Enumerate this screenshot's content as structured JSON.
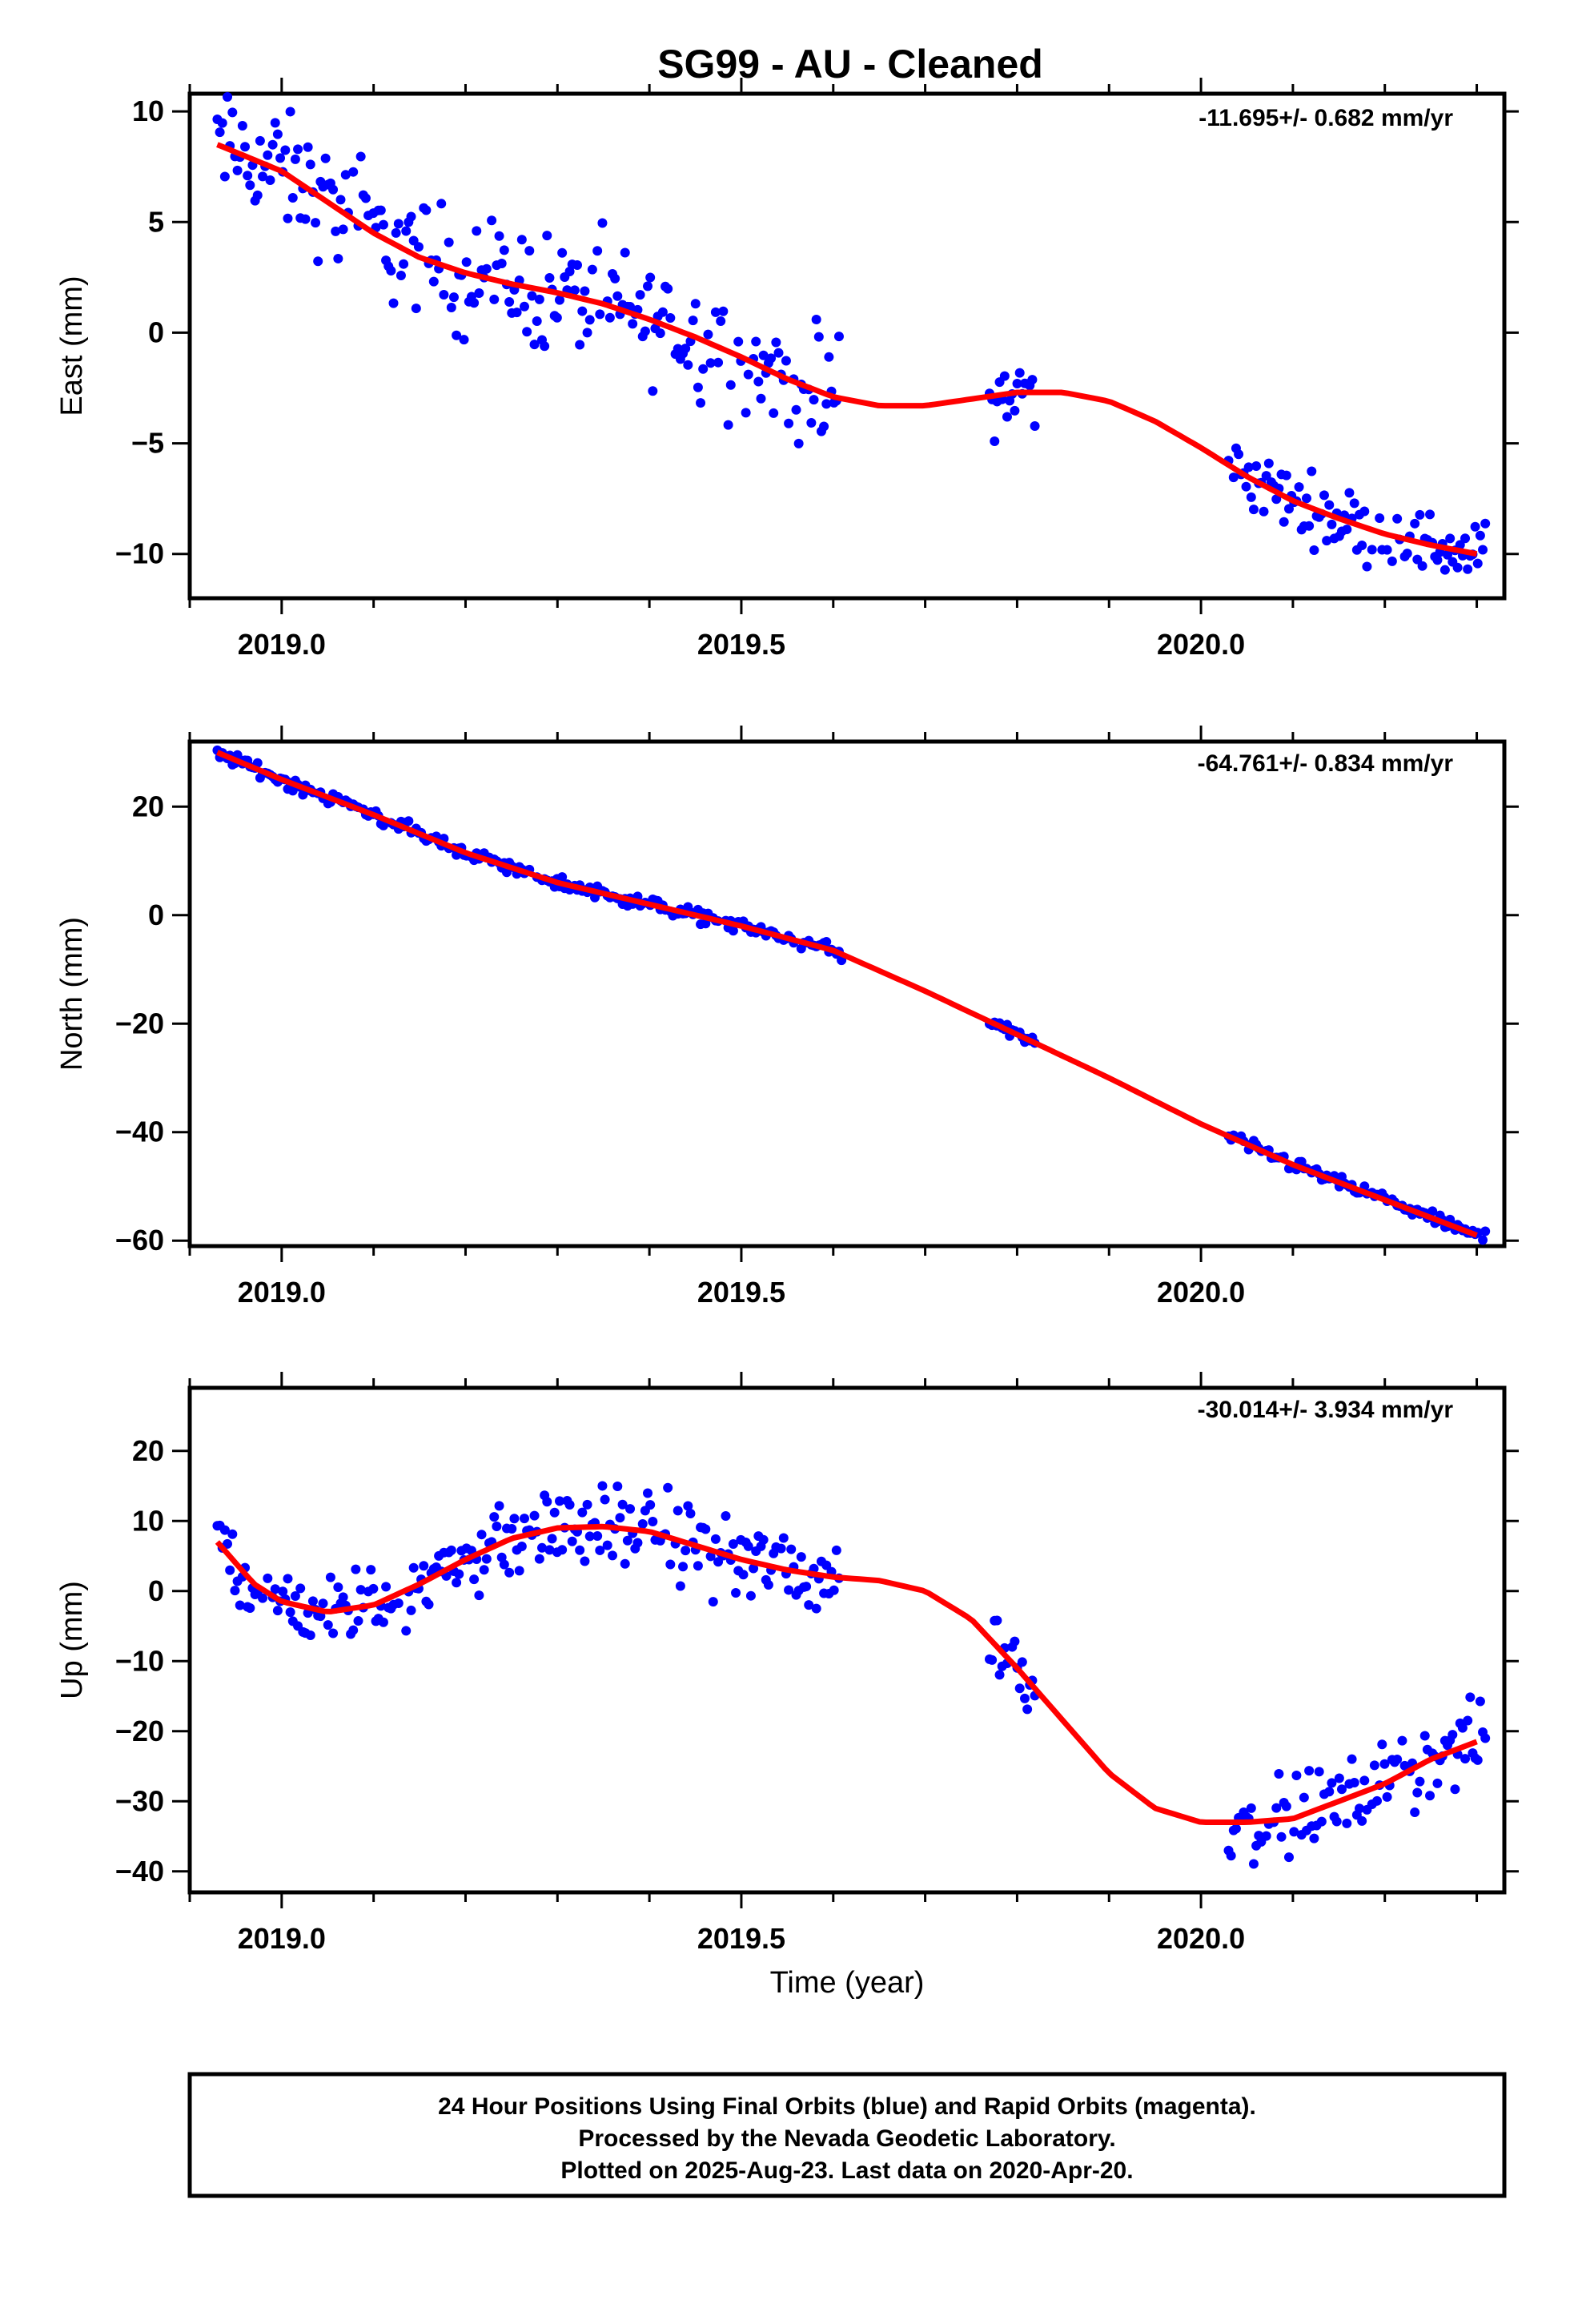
{
  "title": "SG99  - AU - Cleaned",
  "xlabel": "Time (year)",
  "footer": {
    "line1": "24 Hour Positions Using Final Orbits (blue) and Rapid Orbits (magenta).",
    "line2": "Processed by the Nevada Geodetic Laboratory.",
    "line3": "Plotted on 2025-Aug-23. Last data on 2020-Apr-20."
  },
  "colors": {
    "points": "#0000ff",
    "model": "#ff0000",
    "frame": "#000000"
  },
  "chart_data": [
    {
      "type": "scatter",
      "ylabel": "East (mm)",
      "rate_label": "-11.695+/- 0.682 mm/yr",
      "xlim": [
        2018.9,
        2020.33
      ],
      "ylim": [
        -12,
        10.8
      ],
      "xticks": [
        2019.0,
        2019.5,
        2020.0
      ],
      "xtick_labels": [
        "2019.0",
        "2019.5",
        "2020.0"
      ],
      "yticks": [
        10,
        5,
        0,
        -5,
        -10
      ],
      "ytick_labels": [
        "10",
        "5",
        "0",
        "−5",
        "−10"
      ],
      "model": {
        "x": [
          2018.93,
          2019.0,
          2019.05,
          2019.1,
          2019.15,
          2019.2,
          2019.25,
          2019.3,
          2019.35,
          2019.4,
          2019.45,
          2019.5,
          2019.55,
          2019.6,
          2019.65,
          2019.7,
          2019.75,
          2019.8,
          2019.85,
          2019.9,
          2019.95,
          2020.0,
          2020.05,
          2020.1,
          2020.15,
          2020.2,
          2020.25,
          2020.3
        ],
        "y": [
          8.5,
          7.3,
          5.9,
          4.5,
          3.4,
          2.7,
          2.2,
          1.8,
          1.3,
          0.6,
          -0.2,
          -1.1,
          -2.1,
          -2.9,
          -3.3,
          -3.3,
          -3.0,
          -2.7,
          -2.7,
          -3.1,
          -4.0,
          -5.2,
          -6.5,
          -7.6,
          -8.4,
          -9.1,
          -9.6,
          -10.0
        ]
      },
      "segments": [
        [
          2018.93,
          2019.61,
          2.2
        ],
        [
          2019.77,
          2019.82,
          1.5
        ],
        [
          2020.03,
          2020.31,
          1.2
        ]
      ]
    },
    {
      "type": "scatter",
      "ylabel": "North (mm)",
      "rate_label": "-64.761+/- 0.834 mm/yr",
      "xlim": [
        2018.9,
        2020.33
      ],
      "ylim": [
        -61,
        32
      ],
      "xticks": [
        2019.0,
        2019.5,
        2020.0
      ],
      "xtick_labels": [
        "2019.0",
        "2019.5",
        "2020.0"
      ],
      "yticks": [
        20,
        0,
        -20,
        -40,
        -60
      ],
      "ytick_labels": [
        "20",
        "0",
        "−20",
        "−40",
        "−60"
      ],
      "model": {
        "x": [
          2018.93,
          2019.0,
          2019.1,
          2019.2,
          2019.3,
          2019.4,
          2019.5,
          2019.6,
          2019.7,
          2019.8,
          2019.9,
          2020.0,
          2020.1,
          2020.2,
          2020.3
        ],
        "y": [
          30.0,
          25.0,
          18.5,
          11.5,
          6.0,
          2.0,
          -2.0,
          -6.5,
          -14.0,
          -22.0,
          -30.0,
          -38.5,
          -46.0,
          -52.5,
          -59.0
        ]
      },
      "segments": [
        [
          2018.93,
          2019.61,
          1.0
        ],
        [
          2019.77,
          2019.82,
          1.0
        ],
        [
          2020.03,
          2020.31,
          0.9
        ]
      ]
    },
    {
      "type": "scatter",
      "ylabel": "Up (mm)",
      "rate_label": "-30.014+/- 3.934 mm/yr",
      "xlim": [
        2018.9,
        2020.33
      ],
      "ylim": [
        -43,
        29
      ],
      "xticks": [
        2019.0,
        2019.5,
        2020.0
      ],
      "xtick_labels": [
        "2019.0",
        "2019.5",
        "2020.0"
      ],
      "yticks": [
        20,
        10,
        0,
        -10,
        -20,
        -30,
        -40
      ],
      "ytick_labels": [
        "20",
        "10",
        "0",
        "−10",
        "−20",
        "−30",
        "−40"
      ],
      "model": {
        "x": [
          2018.93,
          2018.97,
          2019.0,
          2019.05,
          2019.1,
          2019.15,
          2019.2,
          2019.25,
          2019.3,
          2019.35,
          2019.4,
          2019.45,
          2019.5,
          2019.55,
          2019.6,
          2019.65,
          2019.7,
          2019.75,
          2019.8,
          2019.85,
          2019.9,
          2019.95,
          2020.0,
          2020.05,
          2020.1,
          2020.15,
          2020.2,
          2020.25,
          2020.3
        ],
        "y": [
          7.0,
          1.0,
          -1.5,
          -3.0,
          -2.0,
          1.0,
          4.5,
          7.5,
          9.0,
          9.2,
          8.5,
          6.5,
          4.5,
          3.0,
          2.0,
          1.5,
          0.0,
          -4.0,
          -11.0,
          -18.5,
          -26.0,
          -31.0,
          -33.0,
          -33.0,
          -32.5,
          -30.0,
          -27.5,
          -24.0,
          -21.5
        ]
      },
      "segments": [
        [
          2018.93,
          2019.61,
          4.5
        ],
        [
          2019.77,
          2019.82,
          4.0
        ],
        [
          2020.03,
          2020.31,
          4.5
        ]
      ]
    }
  ]
}
